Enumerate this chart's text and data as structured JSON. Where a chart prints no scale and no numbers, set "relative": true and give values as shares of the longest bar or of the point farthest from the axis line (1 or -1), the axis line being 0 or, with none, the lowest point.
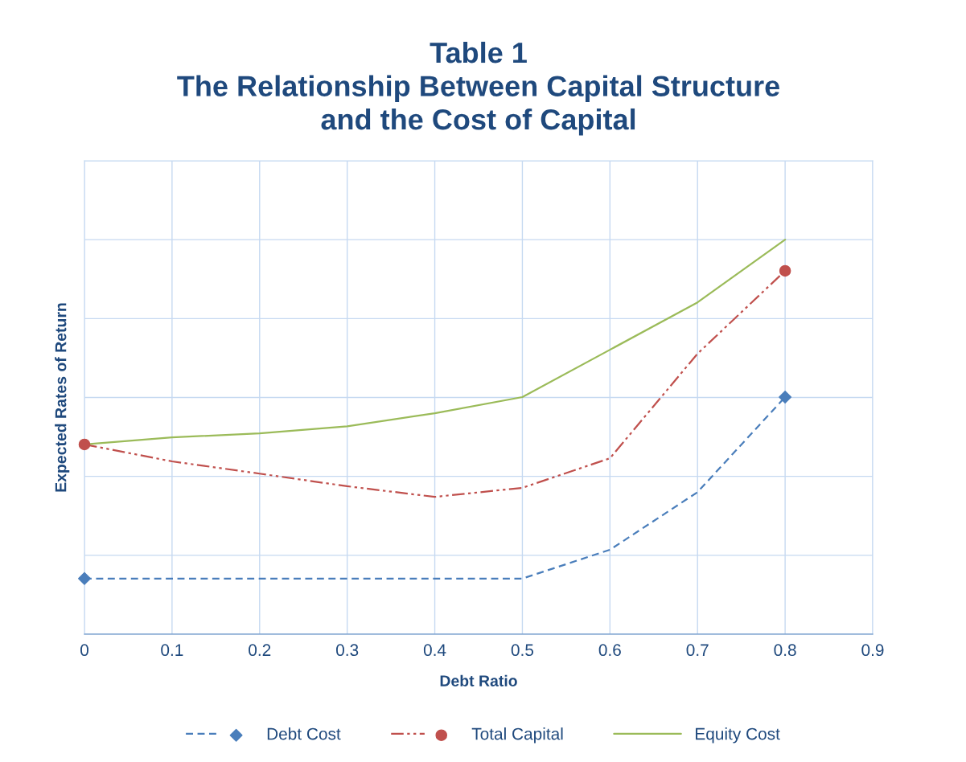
{
  "chart_data": {
    "type": "line",
    "title": "Table 1\nThe Relationship Between Capital Structure\nand the Cost of Capital",
    "xlabel": "Debt Ratio",
    "ylabel": "Expected Rates of Return",
    "relative": true,
    "x": [
      0,
      0.1,
      0.2,
      0.3,
      0.4,
      0.5,
      0.6,
      0.7,
      0.8
    ],
    "xlim": [
      0,
      0.9
    ],
    "xticks": [
      0,
      0.1,
      0.2,
      0.3,
      0.4,
      0.5,
      0.6,
      0.7,
      0.8,
      0.9
    ],
    "grid": true,
    "legend": "bottom",
    "series": [
      {
        "name": "Debt Cost",
        "color": "#4a7ebb",
        "line_style": "dashed",
        "values": [
          0.141,
          0.141,
          0.141,
          0.141,
          0.141,
          0.141,
          0.214,
          0.36,
          0.601
        ]
      },
      {
        "type": "scatter",
        "color": "#4a7ebb",
        "marker": "diamond",
        "values": [
          0.141,
          null,
          null,
          null,
          null,
          null,
          null,
          null,
          0.601
        ]
      },
      {
        "name": "Total Capital",
        "color": "#c0504d",
        "line_style": "dashdot",
        "values": [
          0.481,
          0.438,
          0.407,
          0.375,
          0.348,
          0.371,
          0.446,
          0.711,
          0.921
        ]
      },
      {
        "type": "scatter",
        "color": "#c0504d",
        "marker": "circle",
        "values": [
          0.481,
          null,
          null,
          null,
          null,
          null,
          null,
          null,
          0.921
        ]
      },
      {
        "name": "Equity Cost",
        "color": "#9bbb59",
        "line_style": "solid",
        "marker": "none",
        "values": [
          0.481,
          0.499,
          0.509,
          0.527,
          0.56,
          0.601,
          0.721,
          0.841,
          1.0
        ]
      }
    ]
  }
}
